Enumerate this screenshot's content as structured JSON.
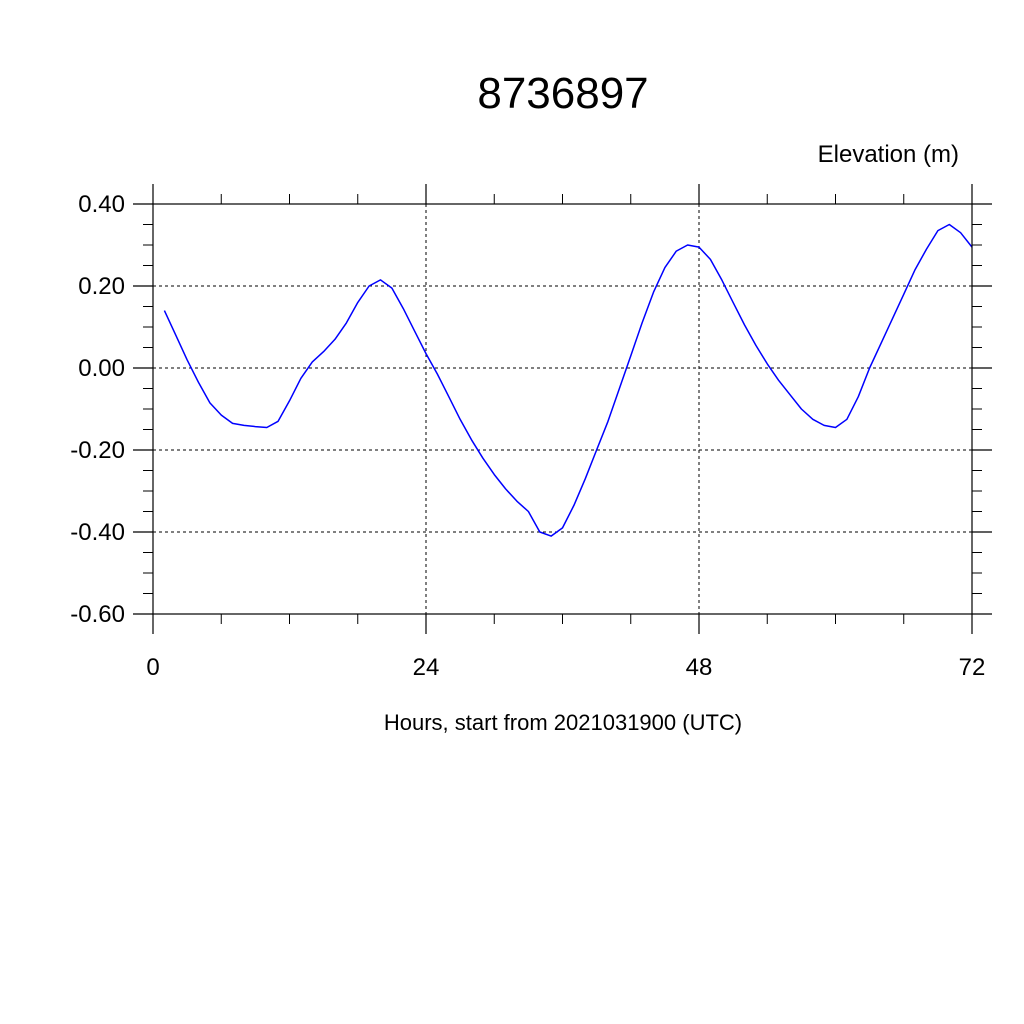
{
  "chart_data": {
    "type": "line",
    "title": "8736897",
    "ylabel": "Elevation (m)",
    "xlabel": "Hours, start from 2021031900 (UTC)",
    "xlim": [
      0,
      72
    ],
    "ylim": [
      -0.6,
      0.4
    ],
    "x_ticks": [
      0,
      24,
      48,
      72
    ],
    "x_tick_labels": [
      "0",
      "24",
      "48",
      "72"
    ],
    "y_ticks": [
      0.4,
      0.2,
      0.0,
      -0.2,
      -0.4,
      -0.6
    ],
    "y_tick_labels": [
      "0.40",
      "0.20",
      "0.00",
      "-0.20",
      "-0.40",
      "-0.60"
    ],
    "grid": true,
    "series": [
      {
        "color": "#0000ff",
        "x": [
          1,
          2,
          3,
          4,
          5,
          6,
          7,
          8,
          9,
          10,
          11,
          12,
          13,
          14,
          15,
          16,
          17,
          18,
          19,
          20,
          21,
          22,
          23,
          24,
          25,
          26,
          27,
          28,
          29,
          30,
          31,
          32,
          33,
          34,
          35,
          36,
          37,
          38,
          39,
          40,
          41,
          42,
          43,
          44,
          45,
          46,
          47,
          48,
          49,
          50,
          51,
          52,
          53,
          54,
          55,
          56,
          57,
          58,
          59,
          60,
          61,
          62,
          63,
          64,
          65,
          66,
          67,
          68,
          69,
          70,
          71,
          72
        ],
        "values": [
          0.14,
          0.08,
          0.02,
          -0.035,
          -0.085,
          -0.115,
          -0.135,
          -0.14,
          -0.143,
          -0.145,
          -0.13,
          -0.08,
          -0.025,
          0.015,
          0.04,
          0.07,
          0.11,
          0.16,
          0.2,
          0.215,
          0.195,
          0.145,
          0.09,
          0.035,
          -0.015,
          -0.07,
          -0.125,
          -0.175,
          -0.22,
          -0.26,
          -0.295,
          -0.325,
          -0.35,
          -0.4,
          -0.41,
          -0.39,
          -0.335,
          -0.27,
          -0.2,
          -0.13,
          -0.05,
          0.03,
          0.11,
          0.185,
          0.245,
          0.285,
          0.3,
          0.295,
          0.265,
          0.215,
          0.16,
          0.105,
          0.055,
          0.01,
          -0.03,
          -0.065,
          -0.1,
          -0.125,
          -0.14,
          -0.145,
          -0.125,
          -0.07,
          0,
          0.06,
          0.12,
          0.18,
          0.24,
          0.29,
          0.335,
          0.35,
          0.33,
          0.295
        ]
      }
    ]
  }
}
